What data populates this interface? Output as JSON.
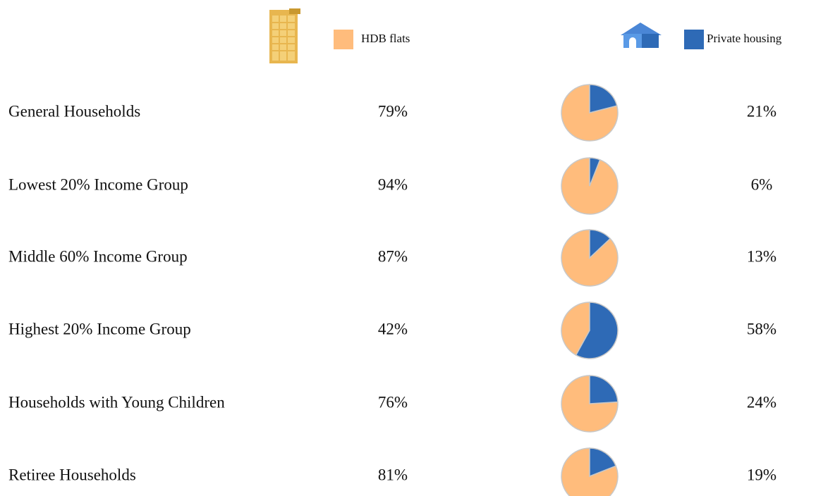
{
  "chart_data": {
    "type": "pie",
    "categories": [
      "General Households",
      "Lowest 20% Income Group",
      "Middle 60% Income Group",
      "Highest 20% Income Group",
      "Households with Young Children",
      "Retiree Households"
    ],
    "series": [
      {
        "name": "HDB flats",
        "color": "#ffbc7c",
        "values": [
          79,
          94,
          87,
          42,
          76,
          81
        ],
        "value_labels": [
          "79%",
          "94%",
          "87%",
          "42%",
          "76%",
          "81%"
        ]
      },
      {
        "name": "Private housing",
        "color": "#2e6ab6",
        "values": [
          21,
          6,
          13,
          58,
          24,
          19
        ],
        "value_labels": [
          "21%",
          "6%",
          "13%",
          "58%",
          "24%",
          "19%"
        ]
      }
    ]
  }
}
